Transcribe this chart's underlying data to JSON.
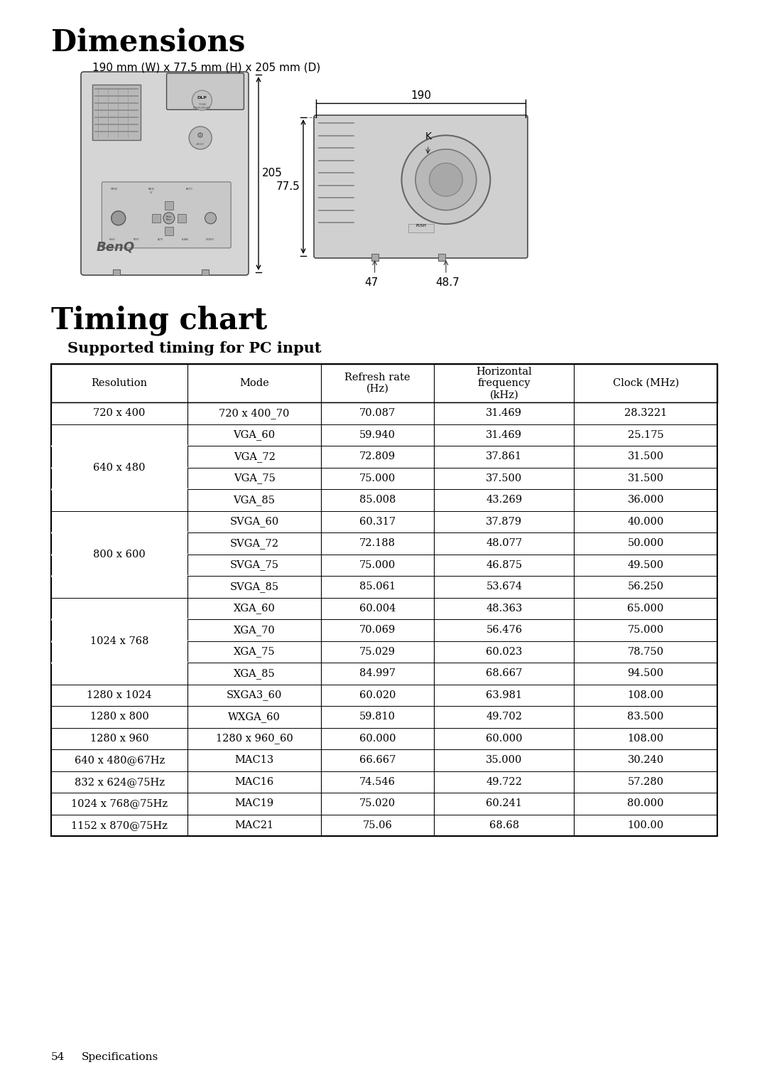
{
  "title_dimensions": "Dimensions",
  "subtitle_dimensions": "190 mm (W) x 77.5 mm (H) x 205 mm (D)",
  "title_timing": "Timing chart",
  "subtitle_timing": "Supported timing for PC input",
  "footer_num": "54",
  "footer_text": "Specifications",
  "table_headers": [
    "Resolution",
    "Mode",
    "Refresh rate\n(Hz)",
    "Horizontal\nfrequency\n(kHz)",
    "Clock (MHz)"
  ],
  "table_data": [
    [
      "720 x 400",
      "720 x 400_70",
      "70.087",
      "31.469",
      "28.3221"
    ],
    [
      "640 x 480",
      "VGA_60",
      "59.940",
      "31.469",
      "25.175"
    ],
    [
      "640 x 480",
      "VGA_72",
      "72.809",
      "37.861",
      "31.500"
    ],
    [
      "640 x 480",
      "VGA_75",
      "75.000",
      "37.500",
      "31.500"
    ],
    [
      "640 x 480",
      "VGA_85",
      "85.008",
      "43.269",
      "36.000"
    ],
    [
      "800 x 600",
      "SVGA_60",
      "60.317",
      "37.879",
      "40.000"
    ],
    [
      "800 x 600",
      "SVGA_72",
      "72.188",
      "48.077",
      "50.000"
    ],
    [
      "800 x 600",
      "SVGA_75",
      "75.000",
      "46.875",
      "49.500"
    ],
    [
      "800 x 600",
      "SVGA_85",
      "85.061",
      "53.674",
      "56.250"
    ],
    [
      "1024 x 768",
      "XGA_60",
      "60.004",
      "48.363",
      "65.000"
    ],
    [
      "1024 x 768",
      "XGA_70",
      "70.069",
      "56.476",
      "75.000"
    ],
    [
      "1024 x 768",
      "XGA_75",
      "75.029",
      "60.023",
      "78.750"
    ],
    [
      "1024 x 768",
      "XGA_85",
      "84.997",
      "68.667",
      "94.500"
    ],
    [
      "1280 x 1024",
      "SXGA3_60",
      "60.020",
      "63.981",
      "108.00"
    ],
    [
      "1280 x 800",
      "WXGA_60",
      "59.810",
      "49.702",
      "83.500"
    ],
    [
      "1280 x 960",
      "1280 x 960_60",
      "60.000",
      "60.000",
      "108.00"
    ],
    [
      "640 x 480@67Hz",
      "MAC13",
      "66.667",
      "35.000",
      "30.240"
    ],
    [
      "832 x 624@75Hz",
      "MAC16",
      "74.546",
      "49.722",
      "57.280"
    ],
    [
      "1024 x 768@75Hz",
      "MAC19",
      "75.020",
      "60.241",
      "80.000"
    ],
    [
      "1152 x 870@75Hz",
      "MAC21",
      "75.06",
      "68.68",
      "100.00"
    ]
  ],
  "background_color": "#ffffff",
  "text_color": "#000000"
}
